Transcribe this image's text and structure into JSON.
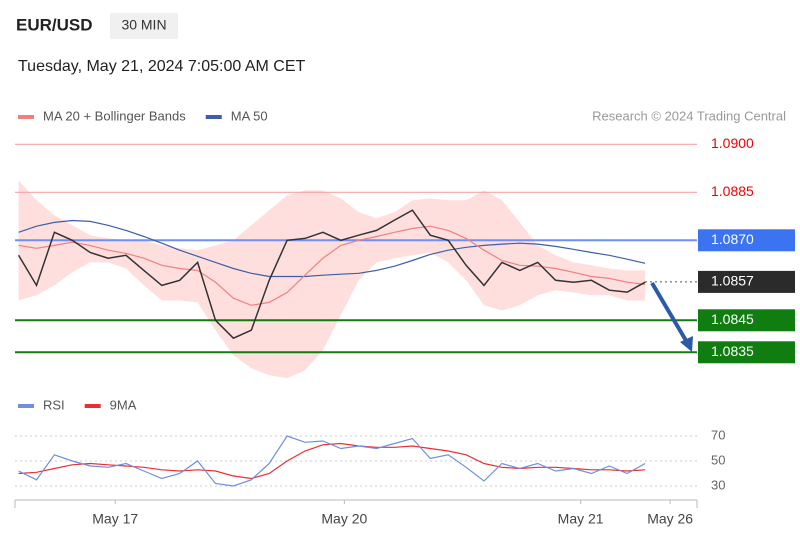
{
  "chart_data": [
    {
      "type": "line",
      "title": "EUR/USD",
      "subtitle": "30 MIN",
      "date": "Tuesday, May 21, 2024 7:05:00 AM CET",
      "credit": "Research © 2024 Trading Central",
      "x": [
        0,
        1,
        2,
        3,
        4,
        5,
        6,
        7,
        8,
        9,
        10,
        11,
        12,
        13,
        14,
        15,
        16,
        17,
        18,
        19,
        20,
        21,
        22,
        23,
        24,
        25,
        26,
        27,
        28,
        29,
        30,
        31,
        32,
        33,
        34,
        35
      ],
      "xlim": [
        -0.2,
        37.9
      ],
      "ylim": [
        1.0826,
        1.0904
      ],
      "series": [
        {
          "color": "#333333",
          "values": [
            1.08653,
            1.08559,
            1.08725,
            1.087,
            1.08662,
            1.08644,
            1.08653,
            1.08606,
            1.08559,
            1.08575,
            1.08631,
            1.0845,
            1.08394,
            1.08419,
            1.08575,
            1.087,
            1.08706,
            1.08725,
            1.087,
            1.08716,
            1.08731,
            1.08763,
            1.08794,
            1.08716,
            1.087,
            1.08622,
            1.08559,
            1.08631,
            1.08606,
            1.08631,
            1.08575,
            1.08569,
            1.08575,
            1.08544,
            1.08538,
            1.08569
          ]
        },
        {
          "name": "MA 20 + Bollinger Bands",
          "color": "#f08080",
          "values": [
            1.08684,
            1.08675,
            1.08684,
            1.08694,
            1.08684,
            1.08669,
            1.08659,
            1.08644,
            1.08622,
            1.08612,
            1.08606,
            1.08569,
            1.08519,
            1.08497,
            1.08506,
            1.08537,
            1.08591,
            1.08644,
            1.08684,
            1.087,
            1.08712,
            1.08725,
            1.08737,
            1.08744,
            1.08731,
            1.08706,
            1.08669,
            1.08637,
            1.08622,
            1.08619,
            1.08612,
            1.086,
            1.08587,
            1.08581,
            1.08569,
            1.08562
          ]
        },
        {
          "name": "MA 50",
          "color": "#3d5fa8",
          "values": [
            1.08725,
            1.08744,
            1.08756,
            1.08762,
            1.08759,
            1.08747,
            1.08731,
            1.08712,
            1.08691,
            1.08669,
            1.0865,
            1.08631,
            1.08612,
            1.08597,
            1.08587,
            1.08587,
            1.08587,
            1.08591,
            1.08594,
            1.08597,
            1.08606,
            1.08619,
            1.08637,
            1.08656,
            1.08669,
            1.08678,
            1.08684,
            1.08688,
            1.08691,
            1.08688,
            1.08681,
            1.08672,
            1.08662,
            1.08653,
            1.08641,
            1.08628
          ]
        }
      ],
      "band": {
        "color": "#ffd3d3",
        "upper": [
          1.08887,
          1.08825,
          1.08778,
          1.08747,
          1.08716,
          1.08706,
          1.087,
          1.087,
          1.08684,
          1.08675,
          1.08669,
          1.08684,
          1.087,
          1.08747,
          1.08794,
          1.08841,
          1.08856,
          1.08856,
          1.08831,
          1.08788,
          1.08769,
          1.08788,
          1.08825,
          1.08831,
          1.08825,
          1.08825,
          1.08856,
          1.08825,
          1.08756,
          1.08684,
          1.08653,
          1.08631,
          1.08622,
          1.08612,
          1.08606,
          1.08606
        ],
        "lower": [
          1.08512,
          1.08528,
          1.08559,
          1.086,
          1.08631,
          1.08631,
          1.08612,
          1.08559,
          1.08512,
          1.08512,
          1.08506,
          1.08419,
          1.08341,
          1.083,
          1.08278,
          1.08269,
          1.08294,
          1.08356,
          1.08466,
          1.08575,
          1.08631,
          1.08644,
          1.08653,
          1.08662,
          1.08631,
          1.08575,
          1.08497,
          1.08481,
          1.08497,
          1.08528,
          1.08544,
          1.08537,
          1.08528,
          1.08528,
          1.08512,
          1.08512
        ]
      },
      "levels": [
        {
          "value": 1.09,
          "label": "1.0900",
          "color": "#f4a5a5",
          "label_color": "#ee0000",
          "box": false,
          "line": "solid"
        },
        {
          "value": 1.0885,
          "label": "1.0885",
          "color": "#f4a5a5",
          "label_color": "#ee0000",
          "box": false,
          "line": "solid"
        },
        {
          "value": 1.087,
          "label": "1.0870",
          "color": "#6f8ff5",
          "label_color": "#3b73f0",
          "box": true,
          "line": "solid"
        },
        {
          "value": 1.0857,
          "label": "1.0857",
          "color": "#555555",
          "label_color": "#2b2b2b",
          "box": true,
          "line": "dotted"
        },
        {
          "value": 1.0845,
          "label": "1.0845",
          "color": "#0f7d0f",
          "label_color": "#0f7d0f",
          "box": true,
          "line": "solid"
        },
        {
          "value": 1.0835,
          "label": "1.0835",
          "color": "#0f7d0f",
          "label_color": "#0f7d0f",
          "box": true,
          "line": "solid"
        }
      ]
    },
    {
      "type": "line",
      "x": [
        0,
        1,
        2,
        3,
        4,
        5,
        6,
        7,
        8,
        9,
        10,
        11,
        12,
        13,
        14,
        15,
        16,
        17,
        18,
        19,
        20,
        21,
        22,
        23,
        24,
        25,
        26,
        27,
        28,
        29,
        30,
        31,
        32,
        33,
        34,
        35
      ],
      "xlim": [
        -0.2,
        37.9
      ],
      "ylim": [
        20,
        80
      ],
      "yticks": [
        70,
        50,
        30
      ],
      "xticks": [
        {
          "value": 5.4,
          "label": "May 17"
        },
        {
          "value": 18.2,
          "label": "May 20"
        },
        {
          "value": 31.4,
          "label": "May 21"
        },
        {
          "value": 36.4,
          "label": "May 26"
        }
      ],
      "series": [
        {
          "name": "RSI",
          "color": "#6f8fe0",
          "values": [
            42,
            35,
            55,
            50,
            46,
            45,
            48,
            42,
            36,
            40,
            50,
            32,
            30,
            35,
            48,
            70,
            65,
            66,
            60,
            62,
            60,
            64,
            68,
            52,
            55,
            45,
            34,
            48,
            44,
            48,
            42,
            44,
            40,
            46,
            40,
            48
          ]
        },
        {
          "name": "9MA",
          "color": "#e83030",
          "values": [
            40,
            41,
            44,
            47,
            48,
            47,
            46,
            45,
            43,
            42,
            43,
            42,
            38,
            36,
            40,
            50,
            58,
            63,
            64,
            62,
            61,
            61,
            62,
            60,
            58,
            55,
            48,
            45,
            44,
            45,
            45,
            44,
            43,
            43,
            42,
            43
          ]
        }
      ]
    }
  ]
}
